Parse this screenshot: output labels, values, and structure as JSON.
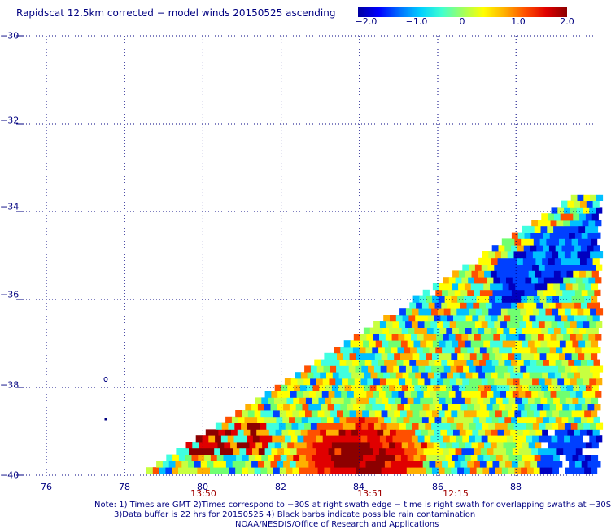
{
  "title": "Rapidscat 12.5km corrected − model winds 20150525 ascending",
  "colorbar": {
    "labels": [
      "−2.0",
      "−1.0",
      "0",
      "1.0",
      "2.0"
    ],
    "colors": [
      "#0000a0",
      "#0000ff",
      "#0070ff",
      "#00d0ff",
      "#40ffd0",
      "#a0ff60",
      "#ffff00",
      "#ffb000",
      "#ff5000",
      "#e00000",
      "#8c0000"
    ]
  },
  "lat_labels": [
    "−30",
    "−32",
    "−34",
    "−36",
    "−38",
    "−40"
  ],
  "lon_labels": [
    "76",
    "78",
    "80",
    "82",
    "84",
    "86",
    "88"
  ],
  "time_labels": [
    "13:50",
    "13:51",
    "12:15"
  ],
  "notes": [
    "Note: 1) Times are GMT 2)Times correspond to −30S at right swath edge − time is right swath for overlapping swaths at −30S",
    "3)Data buffer is 22 hrs for 20150525 4) Black barbs indicate possible rain contamination",
    "NOAA/NESDIS/Office of Research and Applications"
  ],
  "palette": {
    "dark_red": "#8c0000",
    "red": "#e00000",
    "orange_red": "#ff5000",
    "orange": "#ffb000",
    "yellow": "#ffff00",
    "yellow_green": "#c8ff40",
    "green": "#70ff70",
    "cyan": "#40ffe0",
    "light_blue": "#00c0ff",
    "blue": "#0040ff",
    "dark_blue": "#0000c0"
  }
}
